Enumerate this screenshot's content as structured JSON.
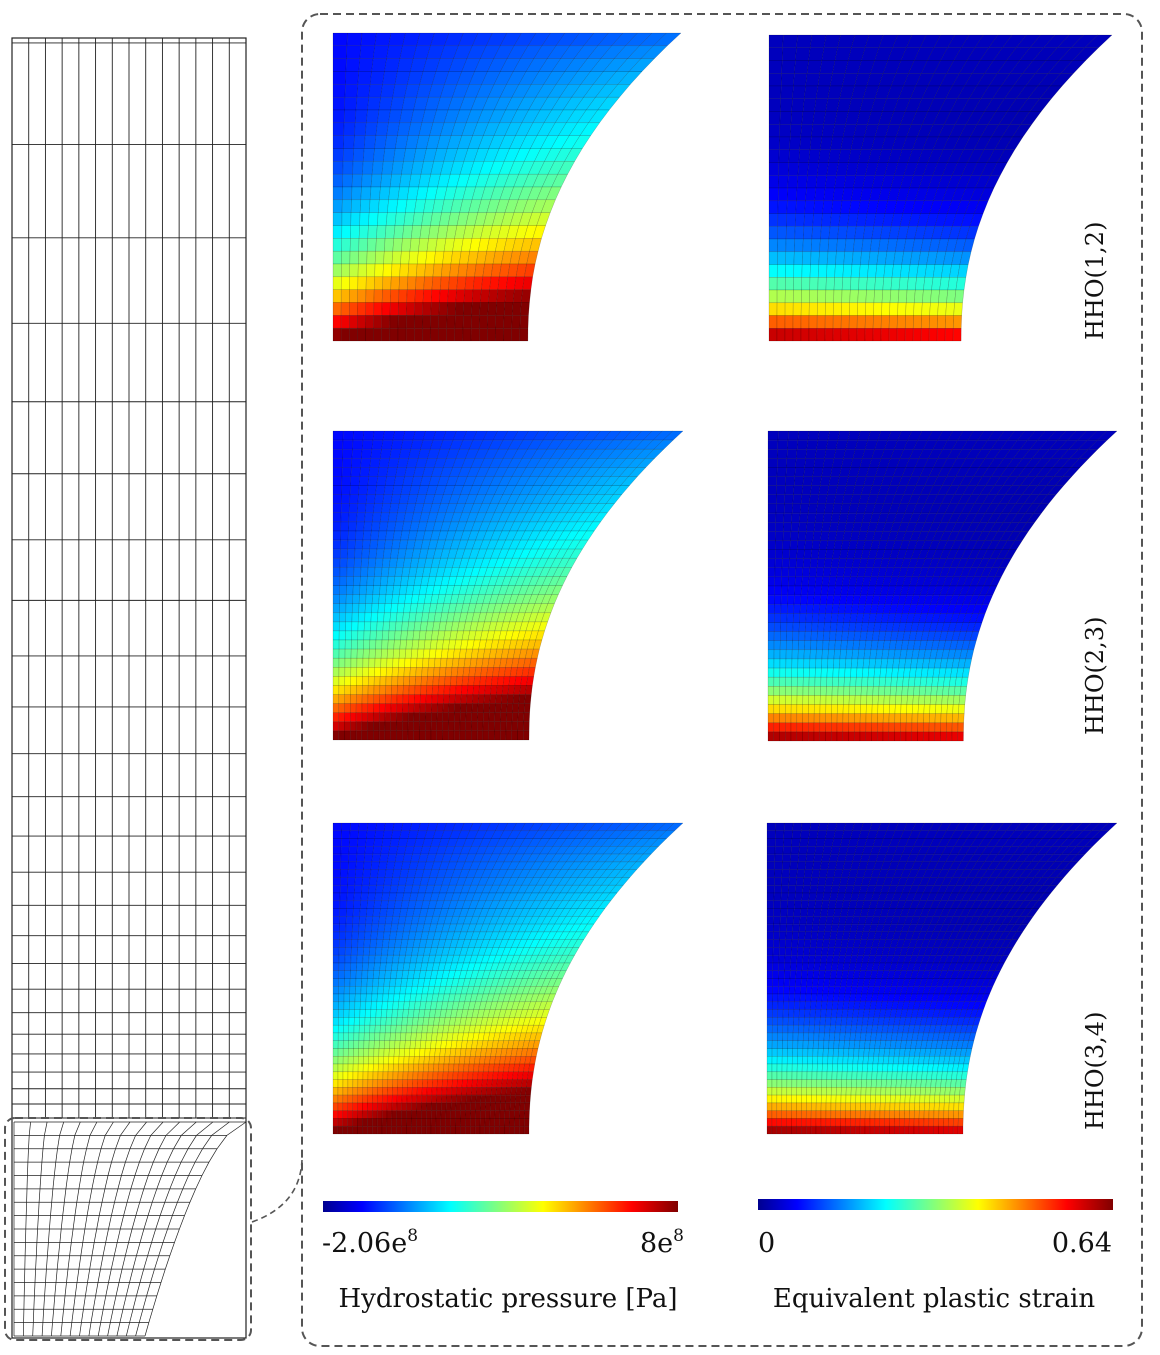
{
  "rows": [
    {
      "label": "HHO(1,2)"
    },
    {
      "label": "HHO(2,3)"
    },
    {
      "label": "HHO(3,4)"
    }
  ],
  "colorbars": {
    "pressure": {
      "min_label": "-2.06e",
      "min_exp": "8",
      "max_label": "8e",
      "max_exp": "8",
      "caption": "Hydrostatic pressure [Pa]"
    },
    "strain": {
      "min_label": "0",
      "max_label": "0.64",
      "caption": "Equivalent plastic strain"
    }
  },
  "colormap": "jet",
  "colors": {
    "frame": "#555555",
    "mesh_line": "#222222"
  }
}
